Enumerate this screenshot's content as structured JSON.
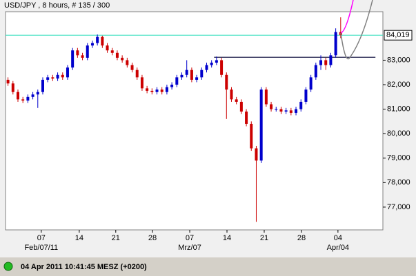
{
  "chart_data": {
    "type": "candlestick",
    "title": "USD/JPY , 8 hours, # 135 / 300",
    "x": [
      1,
      3,
      5,
      7,
      9,
      11,
      13,
      15,
      17,
      19,
      21,
      23,
      25,
      27,
      29,
      31,
      33,
      35,
      37,
      39,
      41,
      43,
      45,
      47,
      49,
      51,
      53,
      55,
      57,
      59,
      61,
      63,
      65,
      67,
      69,
      71,
      73,
      75,
      77,
      79,
      81,
      83,
      85,
      87,
      89,
      91,
      93,
      95,
      97,
      99,
      101,
      103,
      105,
      107,
      109,
      111,
      113,
      115,
      117,
      119,
      121,
      123,
      125,
      127,
      129,
      131,
      133,
      135
    ],
    "open": [
      82.2,
      82.05,
      81.7,
      81.4,
      81.35,
      81.5,
      81.6,
      81.7,
      82.2,
      82.3,
      82.25,
      82.4,
      82.3,
      82.7,
      83.4,
      83.2,
      83.1,
      83.6,
      83.7,
      83.95,
      83.6,
      83.4,
      83.3,
      83.1,
      83.0,
      82.8,
      82.6,
      82.3,
      81.85,
      81.75,
      81.7,
      81.8,
      81.7,
      81.9,
      82.0,
      82.3,
      82.4,
      82.6,
      82.2,
      82.3,
      82.6,
      82.8,
      82.9,
      83.0,
      82.4,
      81.8,
      81.4,
      81.3,
      80.9,
      80.4,
      79.4,
      78.9,
      81.8,
      81.2,
      81.0,
      81.0,
      80.9,
      80.95,
      80.85,
      81.0,
      81.3,
      81.8,
      82.3,
      82.8,
      83.0,
      82.8,
      83.2,
      84.15
    ],
    "high": [
      82.3,
      82.15,
      81.8,
      81.5,
      81.6,
      81.7,
      81.8,
      82.3,
      82.4,
      82.4,
      82.5,
      82.5,
      82.8,
      83.5,
      83.5,
      83.3,
      83.7,
      83.8,
      84.05,
      84.0,
      83.7,
      83.5,
      83.4,
      83.2,
      83.1,
      82.9,
      82.7,
      82.4,
      81.95,
      81.85,
      81.9,
      81.9,
      82.0,
      82.1,
      82.4,
      82.5,
      83.0,
      82.7,
      82.4,
      82.7,
      82.9,
      83.0,
      83.15,
      83.1,
      82.5,
      81.9,
      81.5,
      81.4,
      81.0,
      80.5,
      79.5,
      81.9,
      81.9,
      81.3,
      81.1,
      81.1,
      81.05,
      81.05,
      81.1,
      81.4,
      81.9,
      82.4,
      82.9,
      83.2,
      83.1,
      83.3,
      84.3,
      84.75
    ],
    "low": [
      81.95,
      81.6,
      81.3,
      81.25,
      81.25,
      81.4,
      81.05,
      81.6,
      82.1,
      82.15,
      82.15,
      82.2,
      82.2,
      82.6,
      83.1,
      83.0,
      83.0,
      83.5,
      83.6,
      83.5,
      83.3,
      83.2,
      83.0,
      82.9,
      82.7,
      82.5,
      82.2,
      81.75,
      81.65,
      81.6,
      81.6,
      81.6,
      81.6,
      81.8,
      81.9,
      82.2,
      82.3,
      82.1,
      82.1,
      82.2,
      82.5,
      82.7,
      82.8,
      82.3,
      80.6,
      81.3,
      81.2,
      80.8,
      80.3,
      79.3,
      76.4,
      78.8,
      81.1,
      80.9,
      80.9,
      80.8,
      80.8,
      80.75,
      80.75,
      80.9,
      81.2,
      81.7,
      82.2,
      82.6,
      82.6,
      82.7,
      83.1,
      83.9
    ],
    "close": [
      82.05,
      81.7,
      81.4,
      81.35,
      81.5,
      81.6,
      81.7,
      82.2,
      82.3,
      82.25,
      82.4,
      82.3,
      82.7,
      83.4,
      83.2,
      83.1,
      83.6,
      83.7,
      83.95,
      83.6,
      83.4,
      83.3,
      83.1,
      83.0,
      82.8,
      82.6,
      82.3,
      81.85,
      81.75,
      81.7,
      81.8,
      81.7,
      81.9,
      82.0,
      82.3,
      82.4,
      82.6,
      82.2,
      82.3,
      82.6,
      82.8,
      82.9,
      83.0,
      82.4,
      81.8,
      81.4,
      81.3,
      80.9,
      80.4,
      79.4,
      78.9,
      81.8,
      81.2,
      81.0,
      81.0,
      80.9,
      80.95,
      80.85,
      81.0,
      81.3,
      81.8,
      82.3,
      82.8,
      83.0,
      82.8,
      83.2,
      84.15,
      84.02
    ],
    "up_color": "#0000cc",
    "down_color": "#cc0000",
    "xlim": [
      0,
      152
    ],
    "ylim": [
      76.07,
      84.98
    ],
    "xticks": [
      {
        "value": 14.4,
        "label": "07"
      },
      {
        "value": 29.7,
        "label": "14"
      },
      {
        "value": 44.4,
        "label": "21"
      },
      {
        "value": 59.2,
        "label": "28"
      },
      {
        "value": 74.2,
        "label": "07"
      },
      {
        "value": 89.2,
        "label": "14"
      },
      {
        "value": 104.2,
        "label": "21"
      },
      {
        "value": 119.2,
        "label": "28"
      },
      {
        "value": 133.9,
        "label": "04"
      }
    ],
    "xticks_major": [
      {
        "value": 14.4,
        "label": "Feb/07/11"
      },
      {
        "value": 74.2,
        "label": "Mrz/07"
      },
      {
        "value": 133.9,
        "label": "Apr/04"
      }
    ],
    "yticks": [
      {
        "value": 77,
        "label": "77,000"
      },
      {
        "value": 78,
        "label": "78,000"
      },
      {
        "value": 79,
        "label": "79,000"
      },
      {
        "value": 80,
        "label": "80,000"
      },
      {
        "value": 81,
        "label": "81,000"
      },
      {
        "value": 82,
        "label": "82,000"
      },
      {
        "value": 83,
        "label": "83,000"
      }
    ],
    "current_price": {
      "value": 84.019,
      "label": "84,019",
      "color": "#40e0c0"
    },
    "level_line": {
      "value": 83.12,
      "x": [
        84,
        149
      ],
      "color": "#000033"
    }
  },
  "footer": {
    "timestamp": "04 Apr 2011 10:41:45  MESZ (+0200)"
  }
}
